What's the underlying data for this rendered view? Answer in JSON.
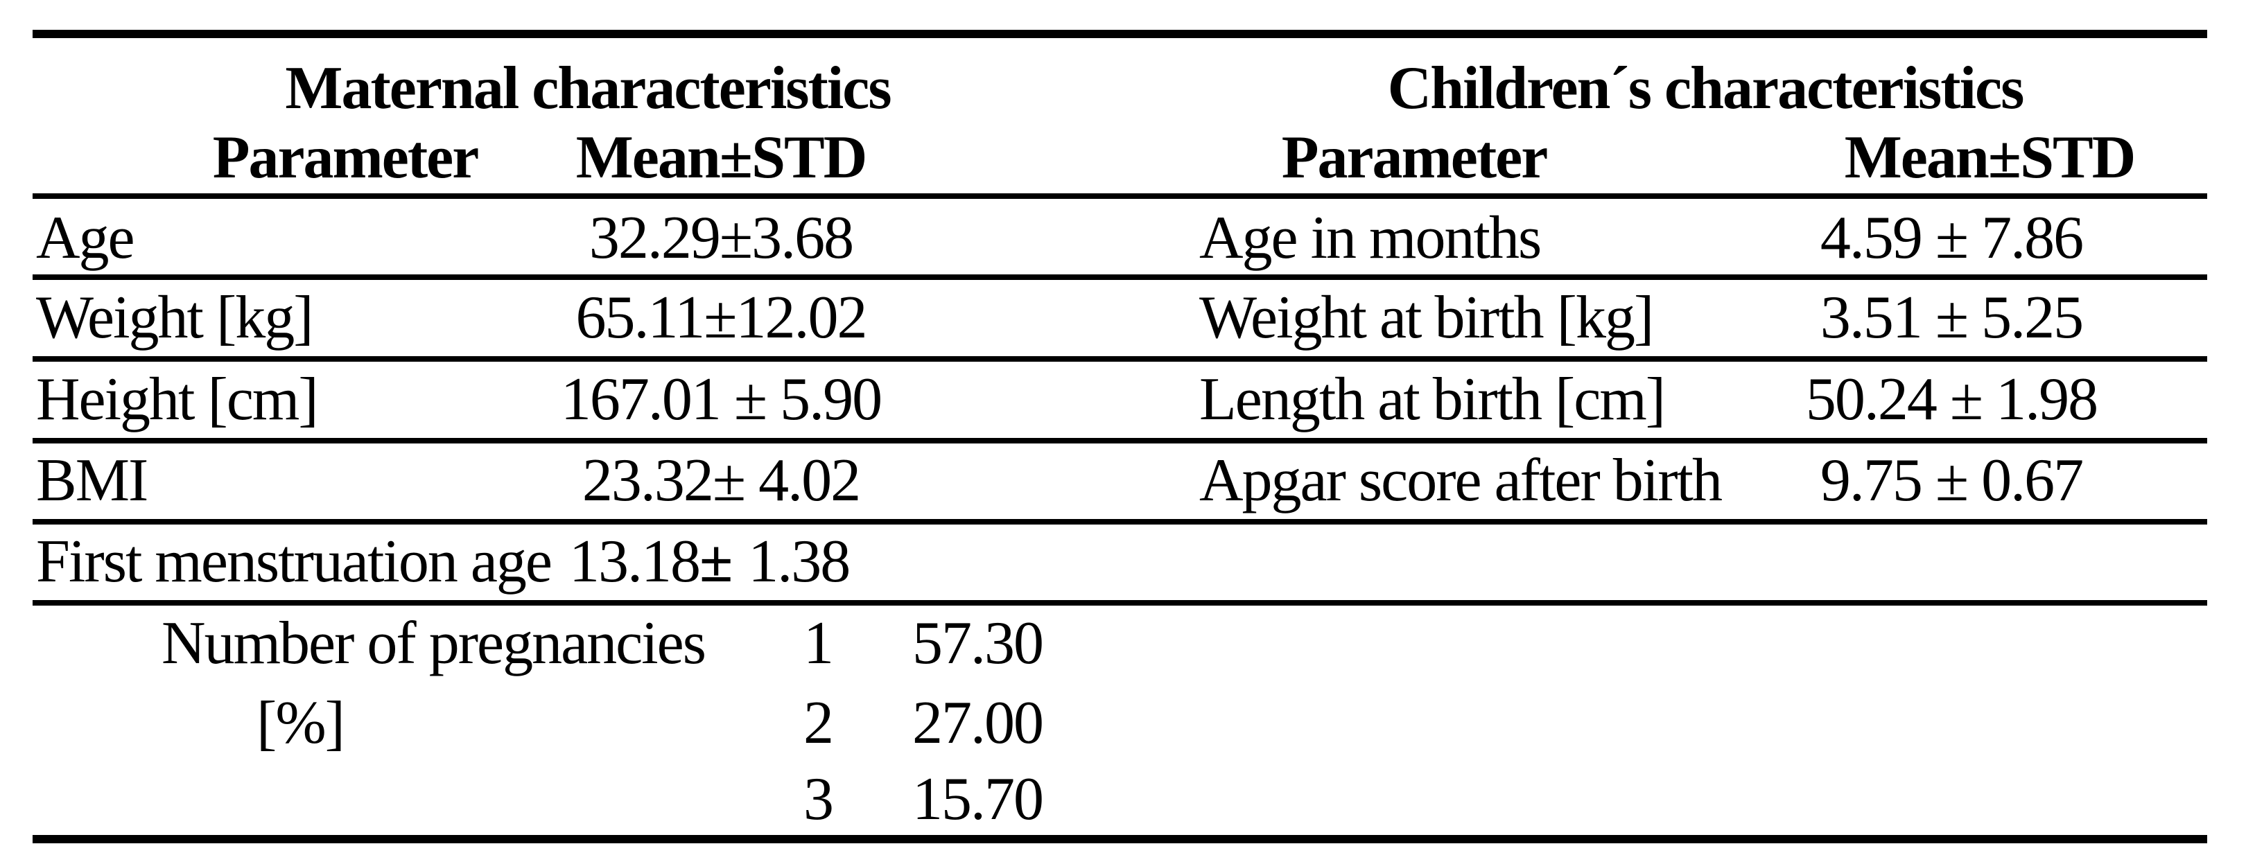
{
  "table": {
    "left_section": {
      "title": "Maternal characteristics",
      "header": {
        "parameter": "Parameter",
        "mean_std": "Mean±STD"
      },
      "rows": [
        {
          "parameter": "Age",
          "mean_std": "32.29±3.68"
        },
        {
          "parameter": "Weight [kg]",
          "mean_std": "65.11±12.02"
        },
        {
          "parameter": "Height [cm]",
          "mean_std": "167.01 ± 5.90"
        },
        {
          "parameter": "BMI",
          "mean_std": "23.32± 4.02"
        }
      ],
      "menstruation_row": {
        "label": "First menstruation age",
        "mean": "13.18",
        "pm": "±",
        "std": "1.38"
      },
      "pregnancies": {
        "label": "Number of pregnancies",
        "unit": "[%]",
        "rows": [
          {
            "count": "1",
            "percent": "57.30"
          },
          {
            "count": "2",
            "percent": "27.00"
          },
          {
            "count": "3",
            "percent": "15.70"
          }
        ]
      }
    },
    "right_section": {
      "title": "Children´s characteristics",
      "header": {
        "parameter": "Parameter",
        "mean_std": "Mean±STD"
      },
      "rows": [
        {
          "parameter": "Age in months",
          "mean_std": "4.59 ± 7.86"
        },
        {
          "parameter": "Weight at birth [kg]",
          "mean_std": "3.51 ± 5.25"
        },
        {
          "parameter": "Length at birth [cm]",
          "mean_std": "50.24 ± 1.98"
        },
        {
          "parameter": "Apgar score after birth",
          "mean_std": "9.75 ± 0.67"
        }
      ]
    }
  }
}
